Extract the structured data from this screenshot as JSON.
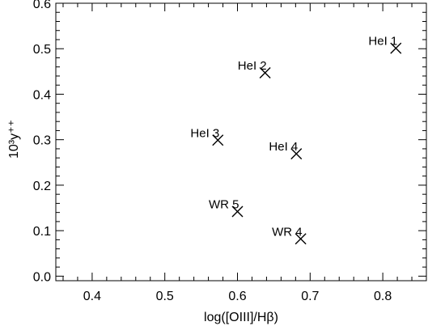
{
  "chart_data": {
    "type": "scatter",
    "title": "",
    "xlabel": "log([OIII]/Hβ)",
    "ylabel": "10³y⁺⁺",
    "xlim": [
      0.35,
      0.86
    ],
    "ylim": [
      -0.01,
      0.6
    ],
    "xticks": [
      0.4,
      0.5,
      0.6,
      0.7,
      0.8
    ],
    "yticks": [
      0.0,
      0.1,
      0.2,
      0.3,
      0.4,
      0.5,
      0.6
    ],
    "xtick_labels": [
      "0.4",
      "0.5",
      "0.6",
      "0.7",
      "0.8"
    ],
    "ytick_labels": [
      "0.0",
      "0.1",
      "0.2",
      "0.3",
      "0.4",
      "0.5",
      "0.6"
    ],
    "marker": "x",
    "grid": false,
    "points": [
      {
        "label": "HeI 1",
        "x": 0.818,
        "y": 0.501
      },
      {
        "label": "HeI 2",
        "x": 0.638,
        "y": 0.447
      },
      {
        "label": "HeI 3",
        "x": 0.573,
        "y": 0.299
      },
      {
        "label": "HeI 4",
        "x": 0.681,
        "y": 0.269
      },
      {
        "label": "WR 5",
        "x": 0.6,
        "y": 0.142
      },
      {
        "label": "WR 4",
        "x": 0.687,
        "y": 0.082
      }
    ]
  }
}
